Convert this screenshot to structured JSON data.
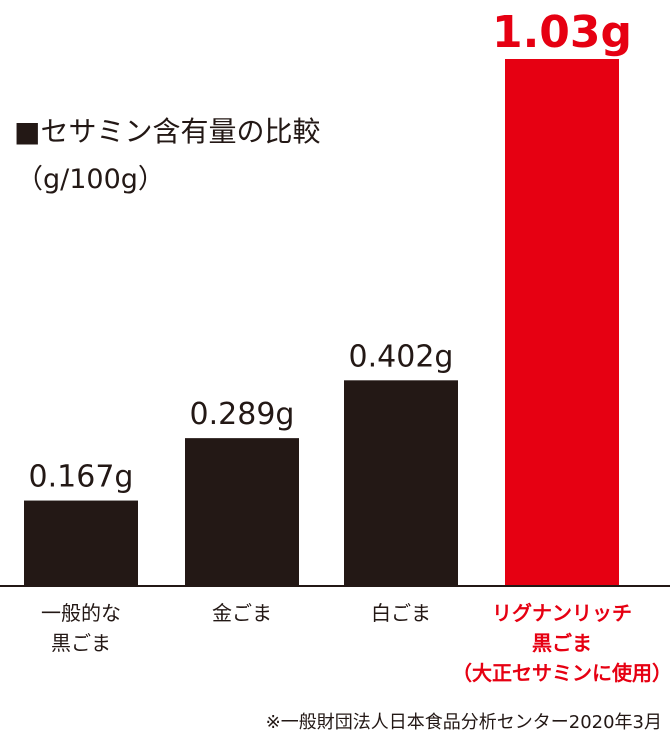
{
  "chart_data": {
    "type": "bar",
    "title": "■セサミン含有量の比較",
    "unit": "（g/100g）",
    "categories": [
      [
        "一般的な",
        "黒ごま"
      ],
      [
        "金ごま"
      ],
      [
        "白ごま"
      ],
      [
        "リグナンリッチ",
        "黒ごま",
        "（大正セサミンに使用）"
      ]
    ],
    "values": [
      0.167,
      0.289,
      0.402,
      1.03
    ],
    "value_labels": [
      "0.167g",
      "0.289g",
      "0.402g",
      "1.03g"
    ],
    "highlight_index": 3,
    "ylim": [
      0,
      1.03
    ],
    "grid": false,
    "colors": {
      "bar": "#231815",
      "highlight": "#e60012",
      "axis": "#231815"
    },
    "source": "※一般財団法人日本食品分析センター2020年3月"
  }
}
